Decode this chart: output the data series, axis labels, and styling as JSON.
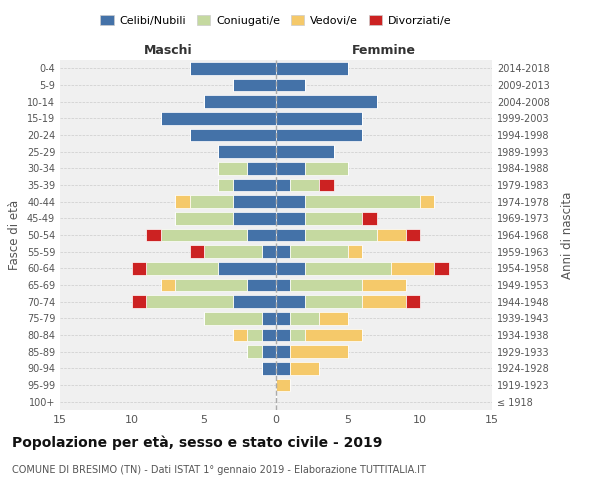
{
  "age_groups": [
    "100+",
    "95-99",
    "90-94",
    "85-89",
    "80-84",
    "75-79",
    "70-74",
    "65-69",
    "60-64",
    "55-59",
    "50-54",
    "45-49",
    "40-44",
    "35-39",
    "30-34",
    "25-29",
    "20-24",
    "15-19",
    "10-14",
    "5-9",
    "0-4"
  ],
  "birth_years": [
    "≤ 1918",
    "1919-1923",
    "1924-1928",
    "1929-1933",
    "1934-1938",
    "1939-1943",
    "1944-1948",
    "1949-1953",
    "1954-1958",
    "1959-1963",
    "1964-1968",
    "1969-1973",
    "1974-1978",
    "1979-1983",
    "1984-1988",
    "1989-1993",
    "1994-1998",
    "1999-2003",
    "2004-2008",
    "2009-2013",
    "2014-2018"
  ],
  "maschi": {
    "celibi": [
      0,
      0,
      1,
      1,
      1,
      1,
      3,
      2,
      4,
      1,
      2,
      3,
      3,
      3,
      2,
      4,
      6,
      8,
      5,
      3,
      6
    ],
    "coniugati": [
      0,
      0,
      0,
      1,
      1,
      4,
      6,
      5,
      5,
      4,
      6,
      4,
      3,
      1,
      2,
      0,
      0,
      0,
      0,
      0,
      0
    ],
    "vedovi": [
      0,
      0,
      0,
      0,
      1,
      0,
      0,
      1,
      0,
      0,
      0,
      0,
      1,
      0,
      0,
      0,
      0,
      0,
      0,
      0,
      0
    ],
    "divorziati": [
      0,
      0,
      0,
      0,
      0,
      0,
      1,
      0,
      1,
      1,
      1,
      0,
      0,
      0,
      0,
      0,
      0,
      0,
      0,
      0,
      0
    ]
  },
  "femmine": {
    "nubili": [
      0,
      0,
      1,
      1,
      1,
      1,
      2,
      1,
      2,
      1,
      2,
      2,
      2,
      1,
      2,
      4,
      6,
      6,
      7,
      2,
      5
    ],
    "coniugate": [
      0,
      0,
      0,
      0,
      1,
      2,
      4,
      5,
      6,
      4,
      5,
      4,
      8,
      2,
      3,
      0,
      0,
      0,
      0,
      0,
      0
    ],
    "vedove": [
      0,
      1,
      2,
      4,
      4,
      2,
      3,
      3,
      3,
      1,
      2,
      0,
      1,
      0,
      0,
      0,
      0,
      0,
      0,
      0,
      0
    ],
    "divorziate": [
      0,
      0,
      0,
      0,
      0,
      0,
      1,
      0,
      1,
      0,
      1,
      1,
      0,
      1,
      0,
      0,
      0,
      0,
      0,
      0,
      0
    ]
  },
  "colors": {
    "celibi": "#4472A8",
    "coniugati": "#C5D9A0",
    "vedovi": "#F5C96A",
    "divorziati": "#CC2222"
  },
  "xlim": 15,
  "title": "Popolazione per età, sesso e stato civile - 2019",
  "subtitle": "COMUNE DI BRESIMO (TN) - Dati ISTAT 1° gennaio 2019 - Elaborazione TUTTITALIA.IT",
  "ylabel_left": "Fasce di età",
  "ylabel_right": "Anni di nascita",
  "xlabel_maschi": "Maschi",
  "xlabel_femmine": "Femmine",
  "legend_labels": [
    "Celibi/Nubili",
    "Coniugati/e",
    "Vedovi/e",
    "Divorziati/e"
  ],
  "background_color": "#ffffff",
  "grid_color": "#cccccc"
}
